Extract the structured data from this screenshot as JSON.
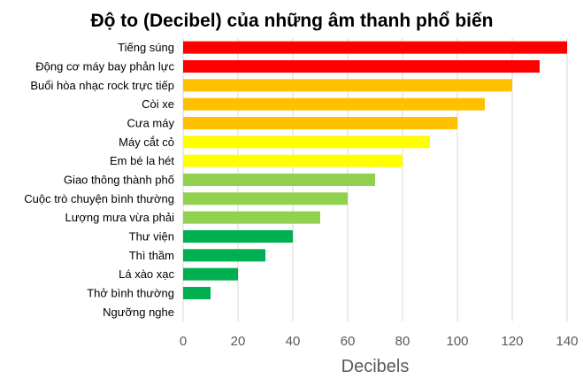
{
  "chart_data": {
    "type": "bar",
    "orientation": "horizontal",
    "title": "Độ to (Decibel) của những âm thanh phổ biến",
    "xlabel": "Decibels",
    "ylabel": "",
    "xlim": [
      0,
      140
    ],
    "xticks": [
      "0",
      "20",
      "40",
      "60",
      "80",
      "100",
      "120",
      "140"
    ],
    "grid": true,
    "categories": [
      "Tiếng súng",
      "Động cơ máy bay phản lực",
      "Buổi hòa nhạc rock trực tiếp",
      "Còi xe",
      "Cưa máy",
      "Máy cắt cỏ",
      "Em bé la hét",
      "Giao thông thành phố",
      "Cuộc trò chuyện bình thường",
      "Lượng mưa vừa phải",
      "Thư viện",
      "Thì thầm",
      "Lá xào xạc",
      "Thở bình thường",
      "Ngưỡng nghe"
    ],
    "values": [
      140,
      130,
      120,
      110,
      100,
      90,
      80,
      70,
      60,
      50,
      40,
      30,
      20,
      10,
      0
    ],
    "colors": [
      "#FF0000",
      "#FF0000",
      "#FFC000",
      "#FFC000",
      "#FFC000",
      "#FFFF00",
      "#FFFF00",
      "#92D050",
      "#92D050",
      "#92D050",
      "#00B050",
      "#00B050",
      "#00B050",
      "#00B050",
      "#00B050"
    ]
  }
}
